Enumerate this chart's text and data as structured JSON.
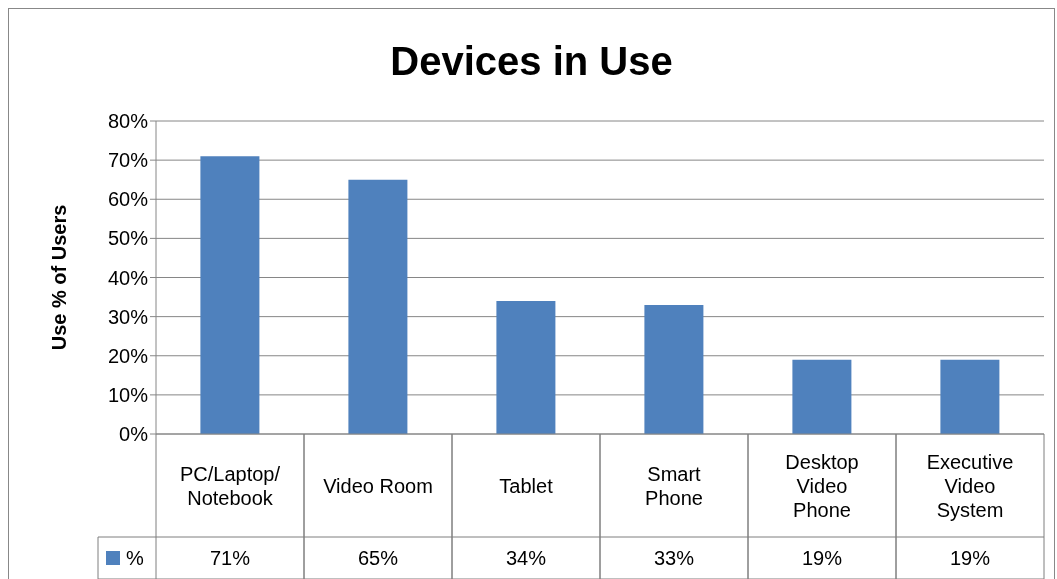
{
  "chart_data": {
    "type": "bar",
    "title": "Devices in Use",
    "ylabel": "Use % of Users",
    "categories": [
      "PC/Laptop/Notebook",
      "Video Room",
      "Tablet",
      "Smart Phone",
      "Desktop Video Phone",
      "Executive Video System"
    ],
    "series": [
      {
        "name": "%",
        "color": "#4f81bd",
        "values": [
          71,
          65,
          34,
          33,
          19,
          19
        ],
        "value_labels": [
          "71%",
          "65%",
          "34%",
          "33%",
          "19%",
          "19%"
        ]
      }
    ],
    "ylim": [
      0,
      80
    ],
    "yticks": [
      {
        "value": 0,
        "label": "0%"
      },
      {
        "value": 10,
        "label": "10%"
      },
      {
        "value": 20,
        "label": "20%"
      },
      {
        "value": 30,
        "label": "30%"
      },
      {
        "value": 40,
        "label": "40%"
      },
      {
        "value": 50,
        "label": "50%"
      },
      {
        "value": 60,
        "label": "60%"
      },
      {
        "value": 70,
        "label": "70%"
      },
      {
        "value": 80,
        "label": "80%"
      }
    ],
    "grid": "y",
    "legend": "bottom"
  }
}
